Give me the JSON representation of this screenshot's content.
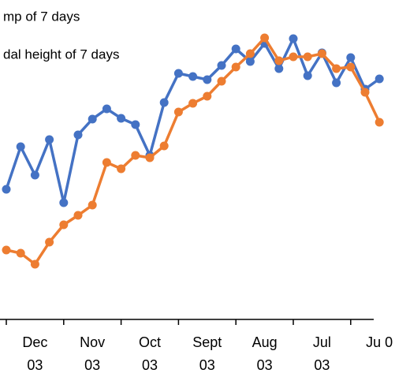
{
  "chart_data": {
    "type": "line",
    "categories": [
      null,
      null,
      "Dec 03",
      null,
      null,
      null,
      "Nov 03",
      null,
      null,
      null,
      "Oct 03",
      null,
      null,
      null,
      "Sept 03",
      null,
      null,
      null,
      "Aug 03",
      null,
      null,
      null,
      "Jul 03",
      null,
      null,
      null,
      "Ju 0"
    ],
    "series": [
      {
        "name": "mp of 7 days",
        "color": "#4472c4",
        "values": [
          234,
          288,
          252,
          297,
          217,
          303,
          323,
          336,
          324,
          316,
          277,
          344,
          381,
          377,
          373,
          391,
          412,
          396,
          419,
          387,
          425,
          378,
          407,
          369,
          401,
          361,
          374
        ]
      },
      {
        "name": "dal height of 7 days",
        "color": "#ed7d31",
        "values": [
          157,
          153,
          139,
          167,
          189,
          201,
          214,
          268,
          260,
          277,
          274,
          289,
          332,
          343,
          352,
          371,
          389,
          406,
          426,
          397,
          402,
          402,
          406,
          387,
          389,
          357,
          319
        ]
      }
    ],
    "ylim": [
      0,
      474
    ]
  }
}
